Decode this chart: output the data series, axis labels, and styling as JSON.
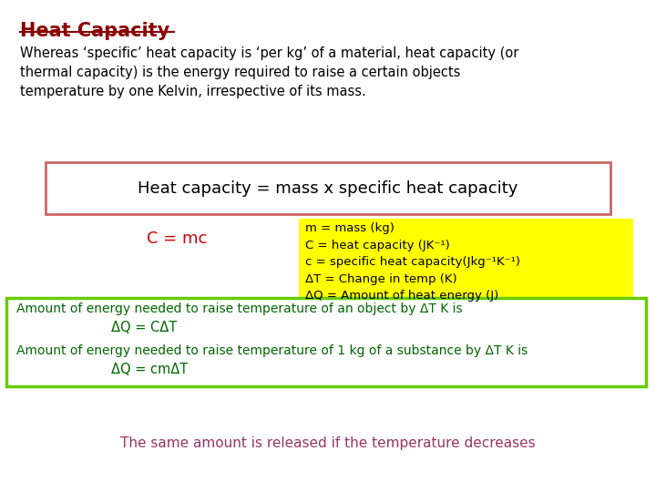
{
  "title": "Heat Capacity",
  "title_color": "#8B0000",
  "bg_color": "#FFFFFF",
  "intro_text": "Whereas ‘specific’ heat capacity is ‘per kg’ of a material, heat capacity (or\nthermal capacity) is the energy required to raise a certain objects\ntemperature by one Kelvin, irrespective of its mass.",
  "intro_color": "#000000",
  "box1_text": "Heat capacity = mass x specific heat capacity",
  "box1_bg": "#FFFFFF",
  "box1_border": "#CC6666",
  "formula_text": "C = mc",
  "formula_color": "#CC0000",
  "yellow_box_bg": "#FFFF00",
  "yellow_lines": [
    "m = mass (kg)",
    "C = heat capacity (JK⁻¹)",
    "c = specific heat capacity(Jkg⁻¹K⁻¹)",
    "ΔT = Change in temp (K)",
    "ΔQ = Amount of heat energy (J)"
  ],
  "green_box_bg": "#FFFFFF",
  "green_box_border": "#66CC00",
  "green_line1": "Amount of energy needed to raise temperature of an object by ΔT K is",
  "green_line2": "ΔQ = CΔT",
  "green_line3": "Amount of energy needed to raise temperature of 1 kg of a substance by ΔT K is",
  "green_line4": "ΔQ = cmΔT",
  "green_text_color": "#006600",
  "bottom_text": "The same amount is released if the temperature decreases",
  "bottom_text_color": "#993366"
}
